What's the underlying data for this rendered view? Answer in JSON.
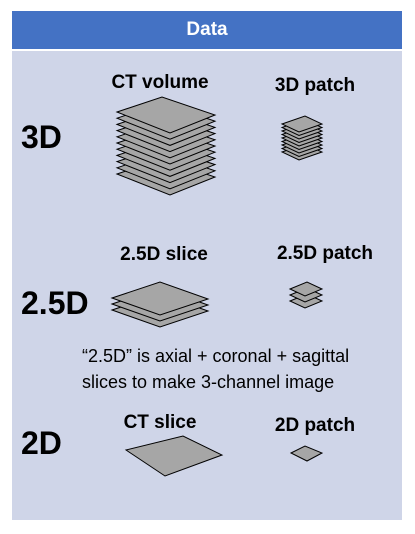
{
  "header": {
    "title": "Data"
  },
  "rows": {
    "r3d": "3D",
    "r25d": "2.5D",
    "r2d": "2D"
  },
  "columns": {
    "ct_volume": "CT volume",
    "patch_3d": "3D patch",
    "slice_25d": "2.5D slice",
    "patch_25d": "2.5D patch",
    "ct_slice": "CT slice",
    "patch_2d": "2D patch"
  },
  "note": {
    "line1": "“2.5D” is axial + coronal + sagittal",
    "line2": "slices to make 3-channel image"
  },
  "colors": {
    "header": "#4472c4",
    "panel": "#cfd5e8",
    "slice_fill": "#a6a6a6",
    "slice_stroke": "#000000"
  }
}
